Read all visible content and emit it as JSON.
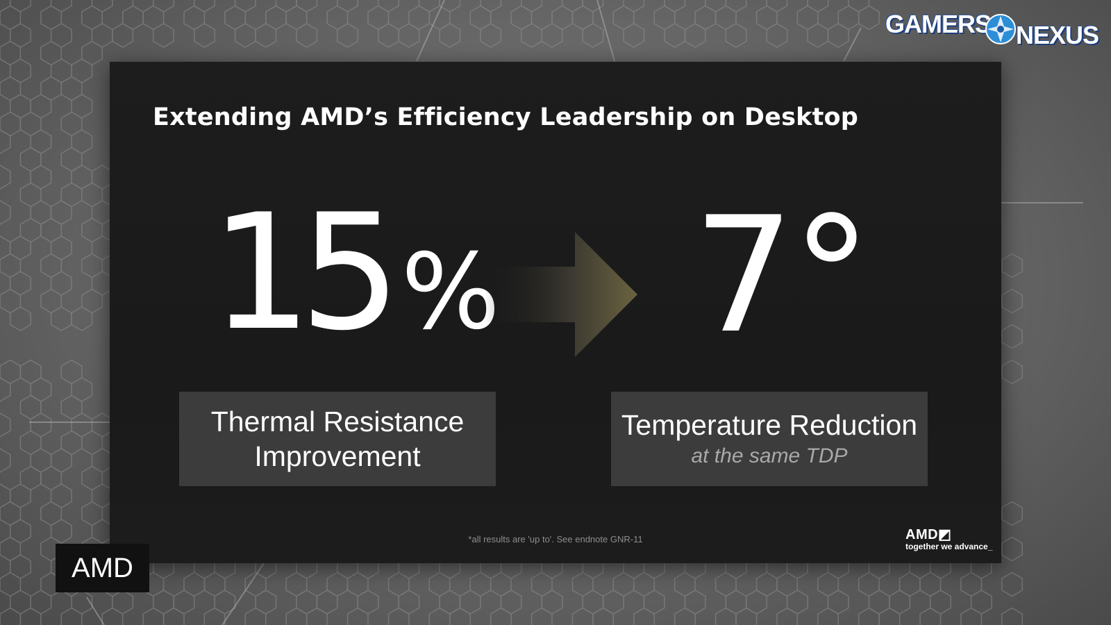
{
  "slide": {
    "title": "Extending AMD’s Efficiency Leadership on Desktop",
    "left_stat": {
      "number": "15",
      "unit": "%",
      "label_line1": "Thermal Resistance",
      "label_line2": "Improvement"
    },
    "right_stat": {
      "number": "7°",
      "label_line1": "Temperature Reduction",
      "label_sub": "at the same TDP"
    },
    "footnote": "*all results are 'up to'. See endnote GNR-11",
    "logo": {
      "brand": "AMD",
      "mark": "◩",
      "tagline": "together we advance_"
    }
  },
  "overlay": {
    "watermark": {
      "left": "GAMERS",
      "right": "NEXUS"
    },
    "corner_label": "AMD"
  },
  "colors": {
    "slide_bg": "#1a1a1a",
    "box_bg": "#3c3c3c",
    "arrow": "#6b6340",
    "text": "#ffffff",
    "subtext": "#a9a9a9"
  }
}
